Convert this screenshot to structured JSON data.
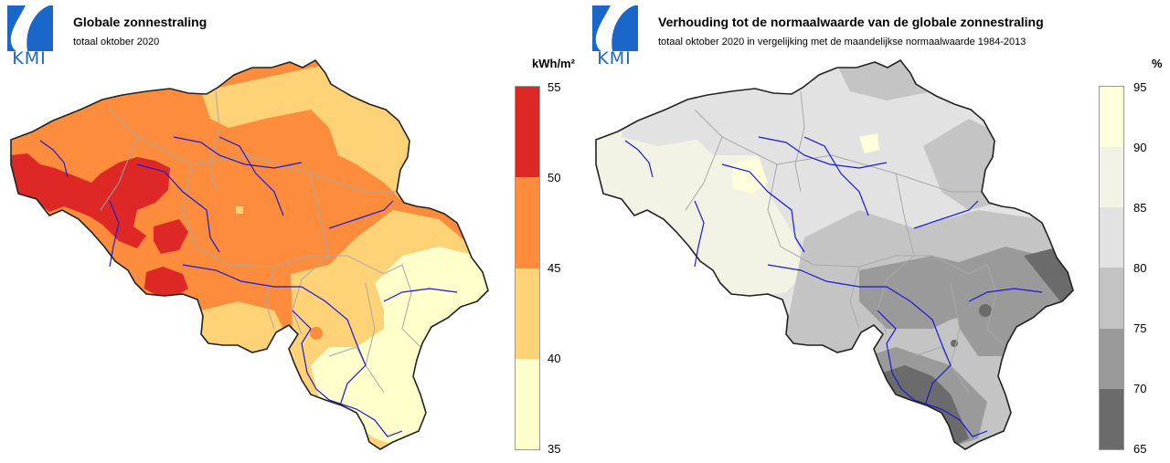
{
  "logo": {
    "text": "KMI",
    "color": "#1b66c9"
  },
  "colors": {
    "border": "#222222",
    "province": "#a8a8a8",
    "river": "#1a1ad6",
    "radiation_classes": {
      "35-40": "#ffffcc",
      "40-45": "#fed378",
      "45-50": "#fd8d3c",
      "50-55": "#de2826"
    },
    "ratio_classes": {
      "65-70": "#6b6b6b",
      "70-75": "#9a9a9a",
      "75-80": "#c4c4c4",
      "80-85": "#e2e2e2",
      "85-90": "#f2f3e4",
      "90-95": "#ffffdc"
    }
  },
  "left_map": {
    "title": "Globale zonnestraling",
    "subtitle": "totaal oktober 2020",
    "legend": {
      "unit": "kWh/m²",
      "ticks": [
        "55",
        "50",
        "45",
        "40",
        "35"
      ]
    }
  },
  "right_map": {
    "title": "Verhouding tot de normaalwaarde van de globale zonnestraling",
    "subtitle": "totaal oktober 2020 in vergelijking met de maandelijkse normaalwaarde 1984-2013",
    "legend": {
      "unit": "%",
      "ticks": [
        "95",
        "90",
        "85",
        "80",
        "75",
        "70",
        "65"
      ]
    }
  }
}
